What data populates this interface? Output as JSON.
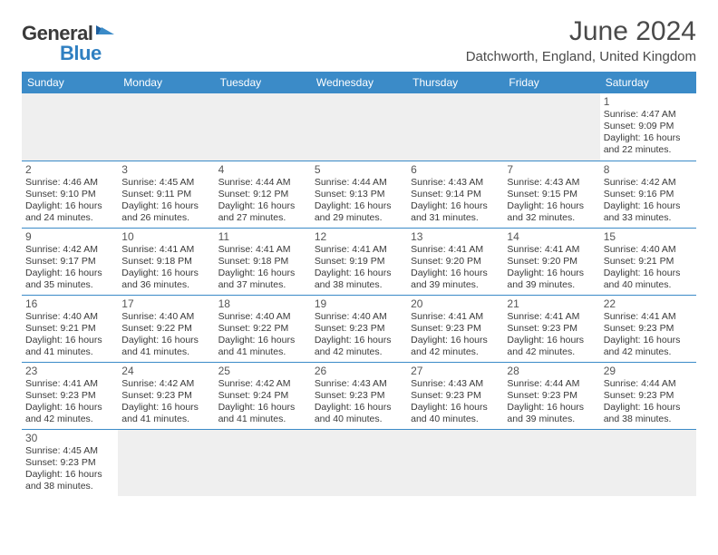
{
  "logo": {
    "general": "General",
    "blue": "Blue"
  },
  "title": "June 2024",
  "location": "Datchworth, England, United Kingdom",
  "colors": {
    "header_bg": "#3b8bc8",
    "header_text": "#ffffff",
    "border": "#3b8bc8",
    "text": "#3a3a3a",
    "logo_blue": "#2f7fc1",
    "empty_bg": "#efefef"
  },
  "weekdays": [
    "Sunday",
    "Monday",
    "Tuesday",
    "Wednesday",
    "Thursday",
    "Friday",
    "Saturday"
  ],
  "weeks": [
    [
      null,
      null,
      null,
      null,
      null,
      null,
      {
        "n": "1",
        "sr": "4:47 AM",
        "ss": "9:09 PM",
        "dl": "16 hours and 22 minutes."
      }
    ],
    [
      {
        "n": "2",
        "sr": "4:46 AM",
        "ss": "9:10 PM",
        "dl": "16 hours and 24 minutes."
      },
      {
        "n": "3",
        "sr": "4:45 AM",
        "ss": "9:11 PM",
        "dl": "16 hours and 26 minutes."
      },
      {
        "n": "4",
        "sr": "4:44 AM",
        "ss": "9:12 PM",
        "dl": "16 hours and 27 minutes."
      },
      {
        "n": "5",
        "sr": "4:44 AM",
        "ss": "9:13 PM",
        "dl": "16 hours and 29 minutes."
      },
      {
        "n": "6",
        "sr": "4:43 AM",
        "ss": "9:14 PM",
        "dl": "16 hours and 31 minutes."
      },
      {
        "n": "7",
        "sr": "4:43 AM",
        "ss": "9:15 PM",
        "dl": "16 hours and 32 minutes."
      },
      {
        "n": "8",
        "sr": "4:42 AM",
        "ss": "9:16 PM",
        "dl": "16 hours and 33 minutes."
      }
    ],
    [
      {
        "n": "9",
        "sr": "4:42 AM",
        "ss": "9:17 PM",
        "dl": "16 hours and 35 minutes."
      },
      {
        "n": "10",
        "sr": "4:41 AM",
        "ss": "9:18 PM",
        "dl": "16 hours and 36 minutes."
      },
      {
        "n": "11",
        "sr": "4:41 AM",
        "ss": "9:18 PM",
        "dl": "16 hours and 37 minutes."
      },
      {
        "n": "12",
        "sr": "4:41 AM",
        "ss": "9:19 PM",
        "dl": "16 hours and 38 minutes."
      },
      {
        "n": "13",
        "sr": "4:41 AM",
        "ss": "9:20 PM",
        "dl": "16 hours and 39 minutes."
      },
      {
        "n": "14",
        "sr": "4:41 AM",
        "ss": "9:20 PM",
        "dl": "16 hours and 39 minutes."
      },
      {
        "n": "15",
        "sr": "4:40 AM",
        "ss": "9:21 PM",
        "dl": "16 hours and 40 minutes."
      }
    ],
    [
      {
        "n": "16",
        "sr": "4:40 AM",
        "ss": "9:21 PM",
        "dl": "16 hours and 41 minutes."
      },
      {
        "n": "17",
        "sr": "4:40 AM",
        "ss": "9:22 PM",
        "dl": "16 hours and 41 minutes."
      },
      {
        "n": "18",
        "sr": "4:40 AM",
        "ss": "9:22 PM",
        "dl": "16 hours and 41 minutes."
      },
      {
        "n": "19",
        "sr": "4:40 AM",
        "ss": "9:23 PM",
        "dl": "16 hours and 42 minutes."
      },
      {
        "n": "20",
        "sr": "4:41 AM",
        "ss": "9:23 PM",
        "dl": "16 hours and 42 minutes."
      },
      {
        "n": "21",
        "sr": "4:41 AM",
        "ss": "9:23 PM",
        "dl": "16 hours and 42 minutes."
      },
      {
        "n": "22",
        "sr": "4:41 AM",
        "ss": "9:23 PM",
        "dl": "16 hours and 42 minutes."
      }
    ],
    [
      {
        "n": "23",
        "sr": "4:41 AM",
        "ss": "9:23 PM",
        "dl": "16 hours and 42 minutes."
      },
      {
        "n": "24",
        "sr": "4:42 AM",
        "ss": "9:23 PM",
        "dl": "16 hours and 41 minutes."
      },
      {
        "n": "25",
        "sr": "4:42 AM",
        "ss": "9:24 PM",
        "dl": "16 hours and 41 minutes."
      },
      {
        "n": "26",
        "sr": "4:43 AM",
        "ss": "9:23 PM",
        "dl": "16 hours and 40 minutes."
      },
      {
        "n": "27",
        "sr": "4:43 AM",
        "ss": "9:23 PM",
        "dl": "16 hours and 40 minutes."
      },
      {
        "n": "28",
        "sr": "4:44 AM",
        "ss": "9:23 PM",
        "dl": "16 hours and 39 minutes."
      },
      {
        "n": "29",
        "sr": "4:44 AM",
        "ss": "9:23 PM",
        "dl": "16 hours and 38 minutes."
      }
    ],
    [
      {
        "n": "30",
        "sr": "4:45 AM",
        "ss": "9:23 PM",
        "dl": "16 hours and 38 minutes."
      },
      null,
      null,
      null,
      null,
      null,
      null
    ]
  ],
  "labels": {
    "sunrise": "Sunrise: ",
    "sunset": "Sunset: ",
    "daylight": "Daylight: "
  }
}
